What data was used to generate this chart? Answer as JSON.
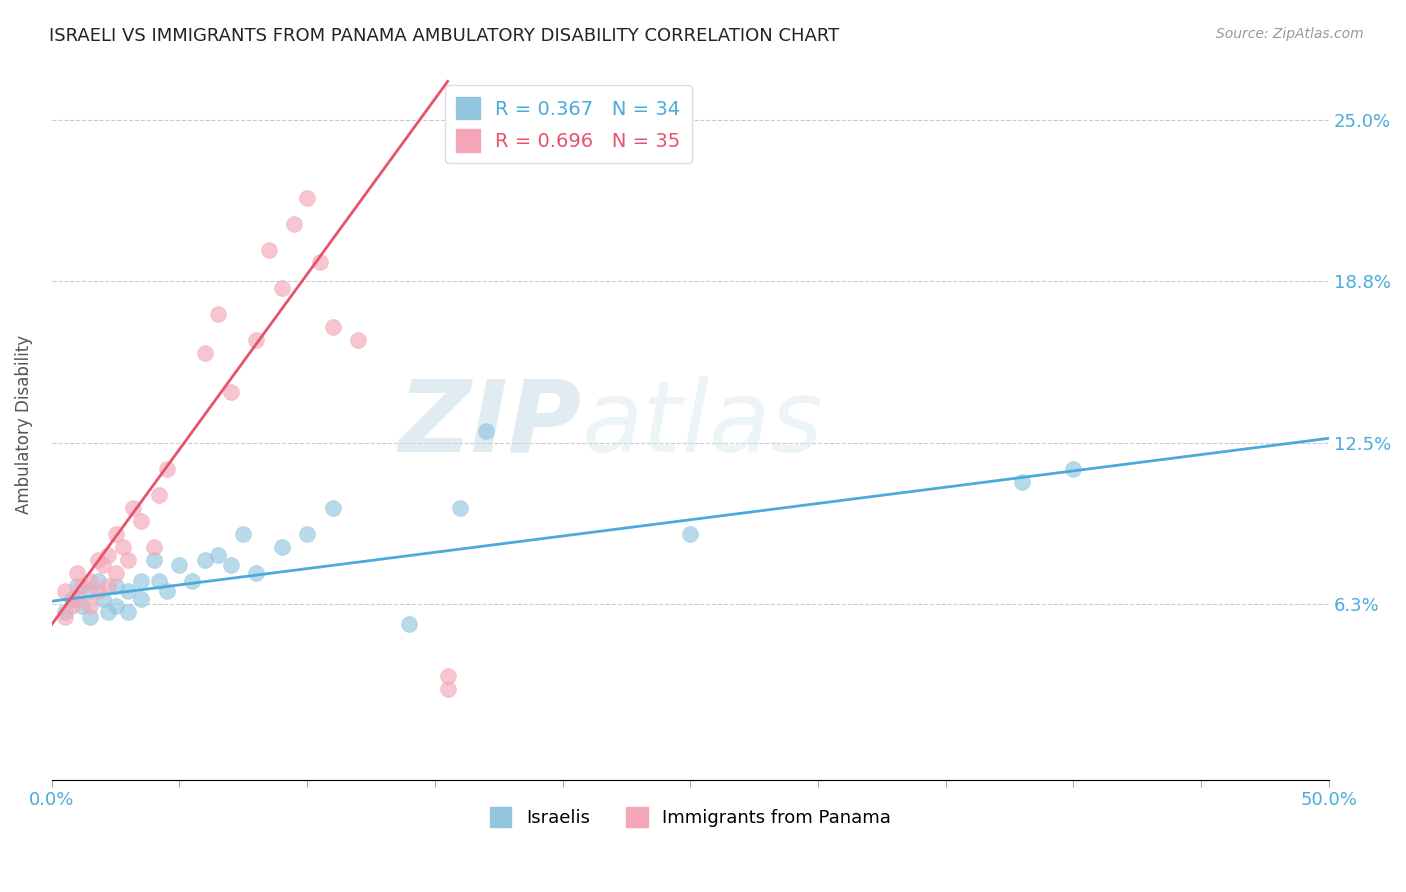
{
  "title": "ISRAELI VS IMMIGRANTS FROM PANAMA AMBULATORY DISABILITY CORRELATION CHART",
  "source": "Source: ZipAtlas.com",
  "ylabel": "Ambulatory Disability",
  "xlim": [
    0.0,
    0.5
  ],
  "ylim": [
    -0.005,
    0.27
  ],
  "ytick_positions": [
    0.063,
    0.125,
    0.188,
    0.25
  ],
  "ytick_labels": [
    "6.3%",
    "12.5%",
    "18.8%",
    "25.0%"
  ],
  "legend1_label": "R = 0.367   N = 34",
  "legend2_label": "R = 0.696   N = 35",
  "bottom_legend": [
    "Israelis",
    "Immigrants from Panama"
  ],
  "israeli_color": "#92C5DE",
  "panama_color": "#F4A6B8",
  "israeli_line_color": "#4AABDB",
  "panama_line_color": "#E8526A",
  "background_color": "#ffffff",
  "israeli_points_x": [
    0.005,
    0.008,
    0.01,
    0.012,
    0.015,
    0.015,
    0.018,
    0.02,
    0.022,
    0.025,
    0.025,
    0.03,
    0.03,
    0.035,
    0.035,
    0.04,
    0.042,
    0.045,
    0.05,
    0.055,
    0.06,
    0.065,
    0.07,
    0.075,
    0.08,
    0.09,
    0.1,
    0.11,
    0.16,
    0.17,
    0.25,
    0.38,
    0.4,
    0.14
  ],
  "israeli_points_y": [
    0.06,
    0.065,
    0.07,
    0.062,
    0.058,
    0.068,
    0.072,
    0.065,
    0.06,
    0.062,
    0.07,
    0.06,
    0.068,
    0.065,
    0.072,
    0.08,
    0.072,
    0.068,
    0.078,
    0.072,
    0.08,
    0.082,
    0.078,
    0.09,
    0.075,
    0.085,
    0.09,
    0.1,
    0.1,
    0.13,
    0.09,
    0.11,
    0.115,
    0.055
  ],
  "panama_points_x": [
    0.005,
    0.005,
    0.008,
    0.01,
    0.01,
    0.012,
    0.015,
    0.015,
    0.018,
    0.018,
    0.02,
    0.022,
    0.022,
    0.025,
    0.025,
    0.028,
    0.03,
    0.032,
    0.035,
    0.04,
    0.042,
    0.045,
    0.06,
    0.065,
    0.07,
    0.08,
    0.085,
    0.09,
    0.095,
    0.1,
    0.105,
    0.11,
    0.12,
    0.155,
    0.155
  ],
  "panama_points_y": [
    0.058,
    0.068,
    0.062,
    0.065,
    0.075,
    0.07,
    0.062,
    0.072,
    0.068,
    0.08,
    0.078,
    0.07,
    0.082,
    0.075,
    0.09,
    0.085,
    0.08,
    0.1,
    0.095,
    0.085,
    0.105,
    0.115,
    0.16,
    0.175,
    0.145,
    0.165,
    0.2,
    0.185,
    0.21,
    0.22,
    0.195,
    0.17,
    0.165,
    0.035,
    0.03
  ],
  "trend_israeli_x0": 0.0,
  "trend_israeli_y0": 0.064,
  "trend_israeli_x1": 0.5,
  "trend_israeli_y1": 0.127,
  "trend_panama_x0": 0.0,
  "trend_panama_y0": 0.055,
  "trend_panama_x1": 0.155,
  "trend_panama_y1": 0.265
}
